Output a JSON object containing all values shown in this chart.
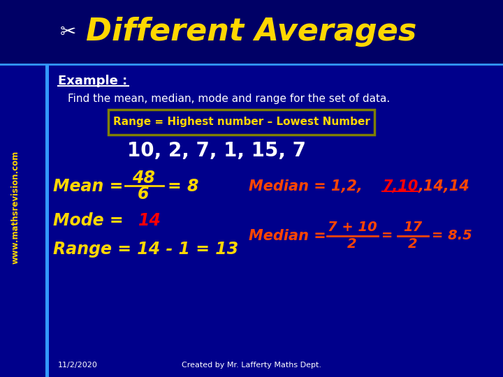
{
  "bg_color": "#00008B",
  "title_text": "Different Averages",
  "title_color": "#FFD700",
  "example_label": "Example :",
  "example_color": "#FFFFFF",
  "find_text": "Find the mean, median, mode and range for the set of data.",
  "find_color": "#FFFFFF",
  "range_box_text": "Range = Highest number – Lowest Number",
  "range_box_bg": "#000080",
  "range_box_border": "#808000",
  "range_box_color": "#FFD700",
  "data_text": "10, 2, 7, 1, 15, 7",
  "data_color": "#FFFFFF",
  "mean_color": "#FFD700",
  "mode_color": "#FFD700",
  "red_color": "#FF0000",
  "median_color": "#FF4500",
  "watermark_color": "#FFD700",
  "footer_color": "#FFFFFF"
}
